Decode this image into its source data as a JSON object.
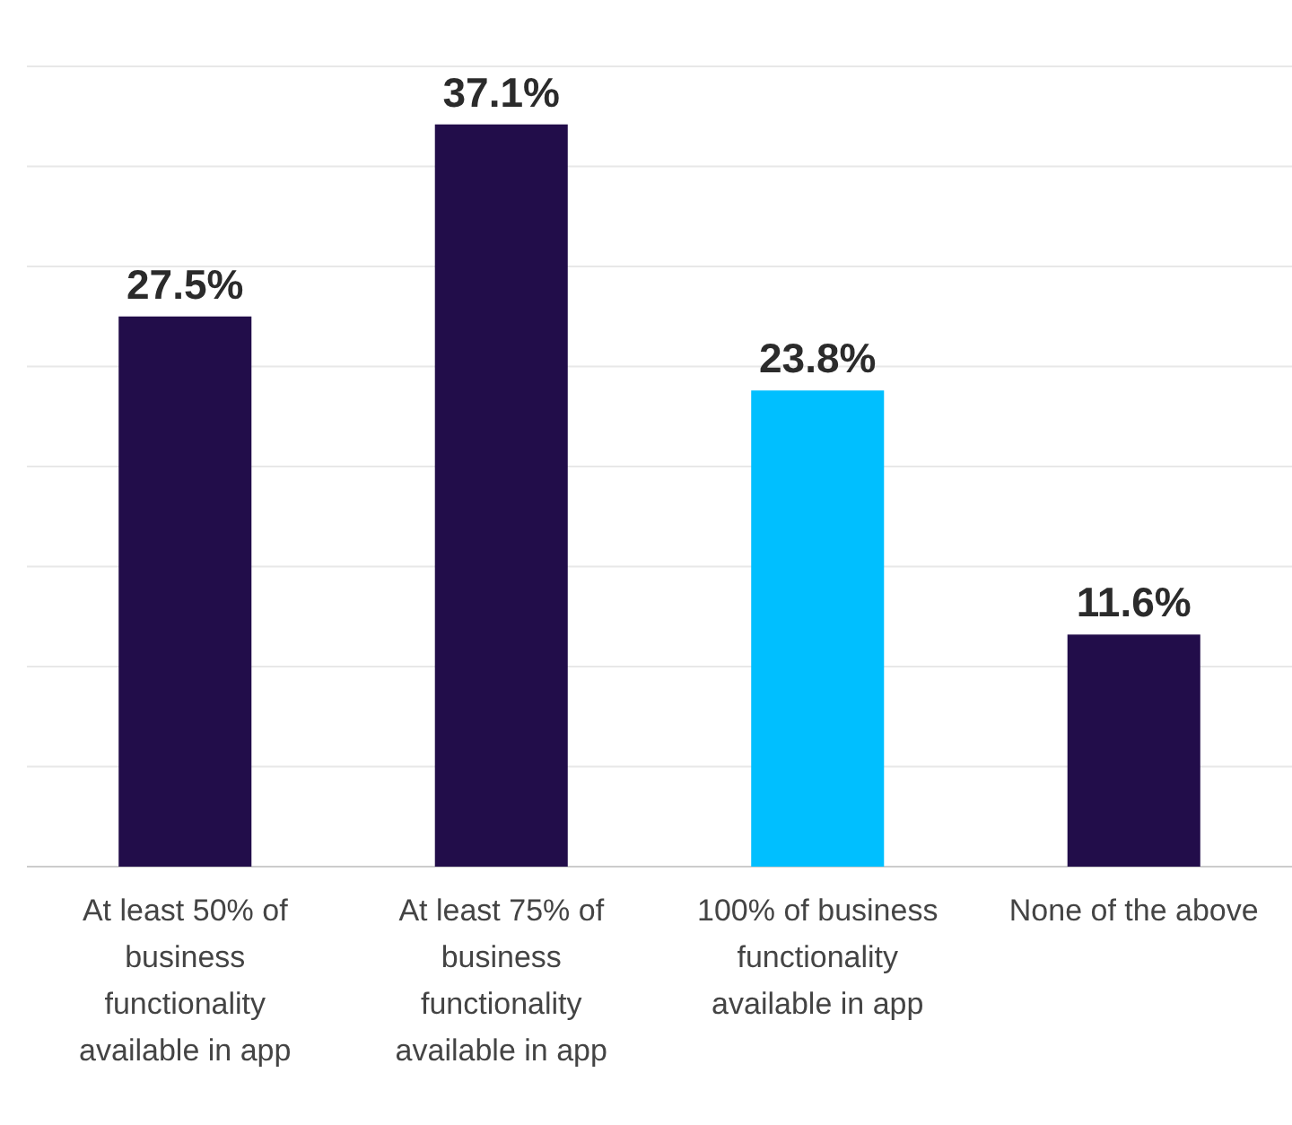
{
  "chart_data": {
    "type": "bar",
    "categories": [
      "At least 50% of business functionality available in app",
      "At least 75% of business functionality available in app",
      "100% of business functionality available in app",
      "None of the above"
    ],
    "values": [
      27.5,
      37.1,
      23.8,
      11.6
    ],
    "colors": [
      "#220d4a",
      "#220d4a",
      "#00bfff",
      "#220d4a"
    ],
    "value_labels": [
      "27.5%",
      "37.1%",
      "23.8%",
      "11.6%"
    ],
    "ylim": [
      0,
      40
    ],
    "yticks": [
      {
        "value": 0,
        "label": null
      },
      {
        "value": 5,
        "label": null
      },
      {
        "value": 10,
        "label": null
      },
      {
        "value": 15,
        "label": null
      },
      {
        "value": 20,
        "label": null
      },
      {
        "value": 25,
        "label": null
      },
      {
        "value": 30,
        "label": null
      },
      {
        "value": 35,
        "label": null
      },
      {
        "value": 40,
        "label": null
      }
    ],
    "grid": "y",
    "tick_labels": "x"
  }
}
